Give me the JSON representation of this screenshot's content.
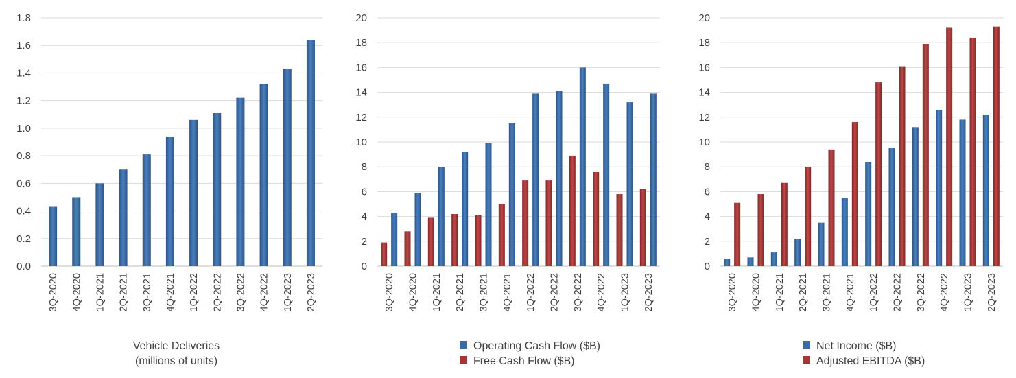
{
  "chart_data": [
    {
      "type": "bar",
      "categories": [
        "3Q-2020",
        "4Q-2020",
        "1Q-2021",
        "2Q-2021",
        "3Q-2021",
        "4Q-2021",
        "1Q-2022",
        "2Q-2022",
        "3Q-2022",
        "4Q-2022",
        "1Q-2023",
        "2Q-2023"
      ],
      "series": [
        {
          "name": "",
          "values": [
            0.43,
            0.5,
            0.6,
            0.7,
            0.81,
            0.94,
            1.06,
            1.11,
            1.22,
            1.32,
            1.43,
            1.64
          ],
          "color": "#3a6ba4"
        }
      ],
      "caption": [
        "Vehicle Deliveries",
        "(millions of units)"
      ],
      "ylim": [
        0,
        1.8
      ],
      "yticks": [
        "0.0",
        "0.2",
        "0.4",
        "0.6",
        "0.8",
        "1.0",
        "1.2",
        "1.4",
        "1.6",
        "1.8"
      ],
      "grid": true,
      "legend": "none"
    },
    {
      "type": "bar",
      "categories": [
        "3Q-2020",
        "4Q-2020",
        "1Q-2021",
        "2Q-2021",
        "3Q-2021",
        "4Q-2021",
        "1Q-2022",
        "2Q-2022",
        "3Q-2022",
        "4Q-2022",
        "1Q-2023",
        "2Q-2023"
      ],
      "series": [
        {
          "name": "Free Cash Flow ($B)",
          "values": [
            1.9,
            2.8,
            3.9,
            4.2,
            4.1,
            5.0,
            6.9,
            6.9,
            8.9,
            7.6,
            5.8,
            6.2
          ],
          "color": "#a63636"
        },
        {
          "name": "Operating Cash Flow ($B)",
          "values": [
            4.3,
            5.9,
            8.0,
            9.2,
            9.9,
            11.5,
            13.9,
            14.1,
            16.0,
            14.7,
            13.2,
            13.9
          ],
          "color": "#3a6ba4"
        }
      ],
      "legend_order": [
        1,
        0
      ],
      "ylim": [
        0,
        20
      ],
      "yticks": [
        "0",
        "2",
        "4",
        "6",
        "8",
        "10",
        "12",
        "14",
        "16",
        "18",
        "20"
      ],
      "grid": true,
      "legend": "bottom"
    },
    {
      "type": "bar",
      "categories": [
        "3Q-2020",
        "4Q-2020",
        "1Q-2021",
        "2Q-2021",
        "3Q-2021",
        "4Q-2021",
        "1Q-2022",
        "2Q-2022",
        "3Q-2022",
        "4Q-2022",
        "1Q-2023",
        "2Q-2023"
      ],
      "series": [
        {
          "name": "Net Income ($B)",
          "values": [
            0.6,
            0.7,
            1.1,
            2.2,
            3.5,
            5.5,
            8.4,
            9.5,
            11.2,
            12.6,
            11.8,
            12.2
          ],
          "color": "#3a6ba4"
        },
        {
          "name": "Adjusted EBITDA ($B)",
          "values": [
            5.1,
            5.8,
            6.7,
            8.0,
            9.4,
            11.6,
            14.8,
            16.1,
            17.9,
            19.2,
            18.4,
            19.3
          ],
          "color": "#a63636"
        }
      ],
      "legend_order": [
        0,
        1
      ],
      "ylim": [
        0,
        20
      ],
      "yticks": [
        "0",
        "2",
        "4",
        "6",
        "8",
        "10",
        "12",
        "14",
        "16",
        "18",
        "20"
      ],
      "grid": true,
      "legend": "bottom"
    }
  ]
}
